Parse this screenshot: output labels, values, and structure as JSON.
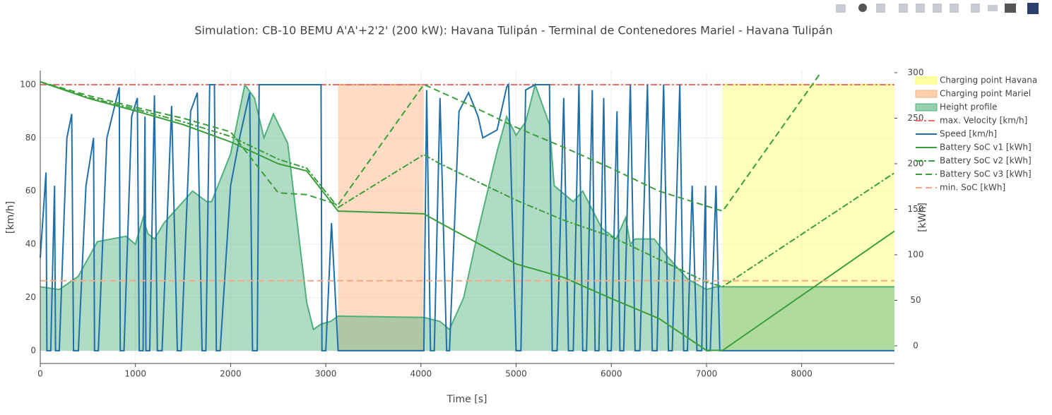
{
  "chart_data": {
    "type": "line",
    "title": "Simulation: CB-10 BEMU A'A'+2'2' (200 kW): Havana Tulipán - Terminal de Contenedores Mariel - Havana Tulipán",
    "x_label": "Time [s]",
    "y_label": "[km/h]",
    "y2_label": "[kWh]",
    "xlim": [
      0,
      8975
    ],
    "xticks": [
      0,
      1000,
      2000,
      3000,
      4000,
      5000,
      6000,
      7000,
      8000
    ],
    "ylim": [
      -4.8,
      105.3
    ],
    "yticks": [
      0,
      20,
      40,
      60,
      80,
      100
    ],
    "y2lim": [
      -19.4,
      302.3
    ],
    "y2ticks": [
      0,
      50,
      100,
      150,
      200,
      250,
      300
    ],
    "grid": true,
    "legend": "right",
    "series": [
      {
        "name": "Charging point Havana",
        "color": "#ffff66",
        "fill": "tozero",
        "dash": "solid",
        "axis": "y",
        "x": [
          7170,
          8975
        ],
        "values": [
          100,
          100
        ]
      },
      {
        "name": "Charging point Mariel",
        "color": "#ffb07a",
        "fill": "tozero",
        "dash": "solid",
        "axis": "y",
        "x": [
          3130,
          4030
        ],
        "values": [
          100,
          100
        ]
      },
      {
        "name": "Height profile",
        "color": "#4fb07c",
        "fill": "tozero",
        "dash": "solid",
        "axis": "y",
        "x": [
          0,
          200,
          400,
          600,
          900,
          1000,
          1080,
          1130,
          1200,
          1300,
          1450,
          1600,
          1750,
          1800,
          2000,
          2150,
          2250,
          2350,
          2450,
          2600,
          2800,
          2870,
          2950,
          3050,
          3130,
          4030,
          4200,
          4300,
          4450,
          4600,
          4800,
          4900,
          5000,
          5100,
          5200,
          5350,
          5400,
          5600,
          5700,
          5800,
          5900,
          6050,
          6150,
          6200,
          6250,
          6450,
          6600,
          6800,
          7000,
          7100,
          7170,
          8975
        ],
        "values": [
          24,
          23,
          28,
          41,
          43,
          40,
          50,
          44,
          42,
          48,
          54,
          60,
          56,
          56,
          74,
          100,
          95,
          80,
          89,
          78,
          18,
          8,
          10,
          11,
          13,
          12.5,
          11,
          8,
          20,
          45,
          75,
          88,
          81,
          86,
          100,
          85,
          62,
          56,
          60,
          53,
          46,
          42,
          50,
          40,
          42,
          42,
          35,
          27,
          23,
          24,
          24,
          24
        ]
      },
      {
        "name": "max. Velocity [km/h]",
        "color": "#ef6f6a",
        "fill": "none",
        "dash": "dashdot",
        "axis": "y",
        "x": [
          0,
          8975
        ],
        "values": [
          100,
          100
        ]
      },
      {
        "name": "Speed [km/h]",
        "color": "#1f6fa8",
        "fill": "none",
        "dash": "solid",
        "axis": "y",
        "x": [
          0,
          60,
          70,
          110,
          150,
          160,
          200,
          280,
          330,
          350,
          400,
          480,
          560,
          570,
          610,
          700,
          830,
          840,
          880,
          960,
          1020,
          1040,
          1080,
          1100,
          1110,
          1150,
          1200,
          1230,
          1280,
          1380,
          1440,
          1480,
          1580,
          1650,
          1700,
          1740,
          1780,
          1830,
          1850,
          1890,
          2000,
          2100,
          2200,
          2230,
          2280,
          2300,
          2950,
          2960,
          3000,
          3060,
          3130,
          4030,
          4060,
          4100,
          4140,
          4200,
          4270,
          4300,
          4400,
          4500,
          4600,
          4650,
          4700,
          4800,
          4900,
          4920,
          5000,
          5050,
          5100,
          5200,
          5350,
          5380,
          5430,
          5500,
          5550,
          5600,
          5660,
          5700,
          5740,
          5800,
          5830,
          5870,
          5920,
          5960,
          6000,
          6060,
          6090,
          6130,
          6200,
          6250,
          6300,
          6380,
          6430,
          6480,
          6550,
          6600,
          6640,
          6720,
          6760,
          6800,
          6850,
          6900,
          6950,
          6990,
          7000,
          7040,
          7100,
          7140,
          8975
        ],
        "values": [
          35,
          67,
          0,
          0,
          62,
          0,
          0,
          80,
          89,
          0,
          0,
          62,
          80,
          0,
          0,
          80,
          99,
          0,
          0,
          88,
          95,
          0,
          0,
          88,
          0,
          0,
          96,
          0,
          0,
          92,
          0,
          0,
          90,
          97,
          0,
          0,
          100,
          100,
          0,
          0,
          62,
          81,
          97,
          0,
          0,
          100,
          100,
          0,
          0,
          48,
          0,
          0,
          98,
          0,
          0,
          95,
          0,
          0,
          90,
          97,
          88,
          80,
          81,
          83,
          99,
          100,
          0,
          0,
          98,
          100,
          100,
          0,
          0,
          95,
          0,
          0,
          100,
          0,
          0,
          98,
          0,
          0,
          95,
          0,
          0,
          90,
          0,
          0,
          100,
          0,
          0,
          100,
          0,
          0,
          100,
          0,
          0,
          100,
          0,
          0,
          62,
          0,
          0,
          62,
          0,
          0,
          62,
          0,
          0
        ]
      },
      {
        "name": "Battery SoC v1 [kWh]",
        "color": "#3a9e3a",
        "fill": "none",
        "dash": "solid",
        "axis": "y2",
        "x": [
          0,
          500,
          1000,
          1500,
          2000,
          2500,
          2800,
          3130,
          4030,
          4200,
          5000,
          5500,
          6000,
          6500,
          7000,
          7170,
          8975
        ],
        "values": [
          290,
          272,
          258,
          243,
          224,
          200,
          192,
          148,
          145,
          135,
          90,
          75,
          52,
          30,
          -5,
          -5,
          126
        ]
      },
      {
        "name": "Battery SoC v2 [kWh]",
        "color": "#3a9e3a",
        "fill": "none",
        "dash": "dashdot",
        "axis": "y2",
        "x": [
          0,
          500,
          1000,
          1500,
          2000,
          2500,
          2800,
          3130,
          4030,
          4200,
          5000,
          5500,
          6000,
          6500,
          7000,
          7170,
          8975
        ],
        "values": [
          290,
          273,
          260,
          246,
          230,
          205,
          195,
          152,
          210,
          200,
          160,
          138,
          120,
          95,
          70,
          65,
          190
        ]
      },
      {
        "name": "Battery SoC v3 [kWh]",
        "color": "#3a9e3a",
        "fill": "none",
        "dash": "dash",
        "axis": "y2",
        "x": [
          0,
          500,
          1000,
          1500,
          2000,
          2500,
          2800,
          3130,
          4030,
          4500,
          5000,
          5500,
          6000,
          6500,
          7170,
          8200
        ],
        "values": [
          290,
          275,
          262,
          250,
          235,
          168,
          166,
          155,
          287,
          265,
          240,
          218,
          195,
          170,
          148,
          300
        ]
      },
      {
        "name": "min. SoC [kWh]",
        "color": "#f7a985",
        "fill": "none",
        "dash": "dash",
        "axis": "y2",
        "x": [
          0,
          8975
        ],
        "values": [
          71.5,
          71.5
        ]
      }
    ]
  }
}
